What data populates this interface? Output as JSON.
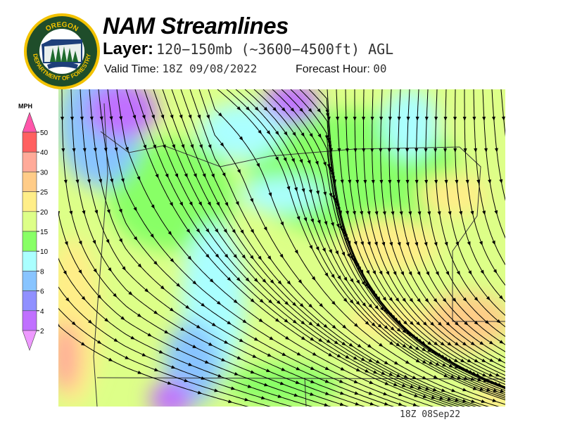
{
  "logo": {
    "text_top": "OREGON",
    "text_bottom": "DEPARTMENT OF FORESTRY"
  },
  "header": {
    "title": "NAM Streamlines",
    "layer_label": "Layer:",
    "layer_value": "120−150mb (~3600−4500ft) AGL",
    "valid_label": "Valid Time:",
    "valid_value": "18Z 09/08/2022",
    "forecast_label": "Forecast Hour:",
    "forecast_value": "00"
  },
  "colorbar": {
    "unit": "MPH",
    "ticks": [
      "50",
      "40",
      "30",
      "25",
      "20",
      "15",
      "10",
      "8",
      "6",
      "4",
      "2"
    ],
    "colors_top_to_bottom": [
      "#ff55aa",
      "#ff6060",
      "#ffaa99",
      "#ffcc88",
      "#ffee88",
      "#ddff88",
      "#88ff66",
      "#aaffff",
      "#88c4ff",
      "#9090ff",
      "#c070ff",
      "#ee99ff"
    ]
  },
  "map": {
    "variable": "wind speed and streamlines",
    "region": "Oregon",
    "timestamp": "18Z 08Sep22"
  }
}
